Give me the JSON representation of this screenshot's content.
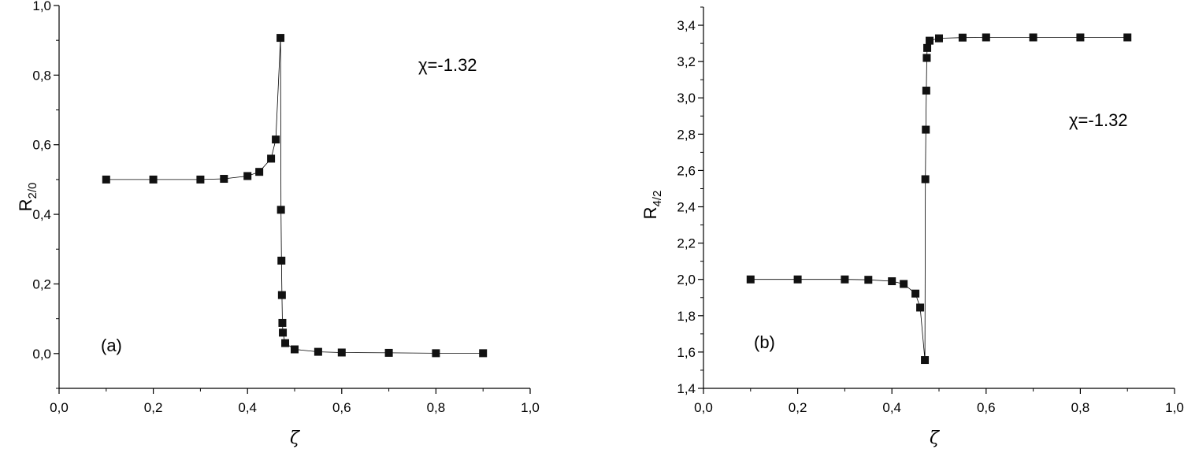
{
  "chart_data": [
    {
      "type": "line",
      "panel_label": "(a)",
      "annotation": "χ=-1.32",
      "xlabel": "ζ",
      "ylabel_main": "R",
      "ylabel_sub": "2/0",
      "xlim": [
        0.0,
        1.0
      ],
      "ylim": [
        -0.1,
        1.0
      ],
      "x_ticks": [
        "0,0",
        "0,2",
        "0,4",
        "0,6",
        "0,8",
        "1,0"
      ],
      "x_tick_values": [
        0.0,
        0.2,
        0.4,
        0.6,
        0.8,
        1.0
      ],
      "y_ticks": [
        "0,0",
        "0,2",
        "0,4",
        "0,6",
        "0,8",
        "1,0"
      ],
      "y_tick_values": [
        0.0,
        0.2,
        0.4,
        0.6,
        0.8,
        1.0
      ],
      "marker": "square",
      "series": [
        {
          "x": [
            0.1,
            0.2,
            0.3,
            0.35,
            0.4,
            0.425,
            0.45,
            0.46,
            0.47,
            0.471,
            0.472,
            0.473,
            0.474,
            0.475,
            0.48,
            0.5,
            0.55,
            0.6,
            0.7,
            0.8,
            0.9
          ],
          "y": [
            0.5,
            0.5,
            0.5,
            0.502,
            0.51,
            0.522,
            0.56,
            0.615,
            0.907,
            0.413,
            0.267,
            0.168,
            0.088,
            0.06,
            0.03,
            0.012,
            0.005,
            0.003,
            0.002,
            0.001,
            0.001
          ]
        }
      ]
    },
    {
      "type": "line",
      "panel_label": "(b)",
      "annotation": "χ=-1.32",
      "xlabel": "ζ",
      "ylabel_main": "R",
      "ylabel_sub": "4/2",
      "xlim": [
        0.0,
        1.0
      ],
      "ylim": [
        1.4,
        3.5
      ],
      "x_ticks": [
        "0,0",
        "0,2",
        "0,4",
        "0,6",
        "0,8",
        "1,0"
      ],
      "x_tick_values": [
        0.0,
        0.2,
        0.4,
        0.6,
        0.8,
        1.0
      ],
      "y_ticks": [
        "1,4",
        "1,6",
        "1,8",
        "2,0",
        "2,2",
        "2,4",
        "2,6",
        "2,8",
        "3,0",
        "3,2",
        "3,4"
      ],
      "y_tick_values": [
        1.4,
        1.6,
        1.8,
        2.0,
        2.2,
        2.4,
        2.6,
        2.8,
        3.0,
        3.2,
        3.4
      ],
      "marker": "square",
      "series": [
        {
          "x": [
            0.1,
            0.2,
            0.3,
            0.35,
            0.4,
            0.425,
            0.45,
            0.46,
            0.47,
            0.471,
            0.472,
            0.473,
            0.474,
            0.475,
            0.48,
            0.5,
            0.55,
            0.6,
            0.7,
            0.8,
            0.9
          ],
          "y": [
            2.0,
            2.0,
            2.0,
            1.998,
            1.99,
            1.975,
            1.922,
            1.845,
            1.556,
            2.552,
            2.825,
            3.04,
            3.22,
            3.275,
            3.315,
            3.328,
            3.332,
            3.333,
            3.333,
            3.333,
            3.333
          ]
        }
      ]
    }
  ]
}
